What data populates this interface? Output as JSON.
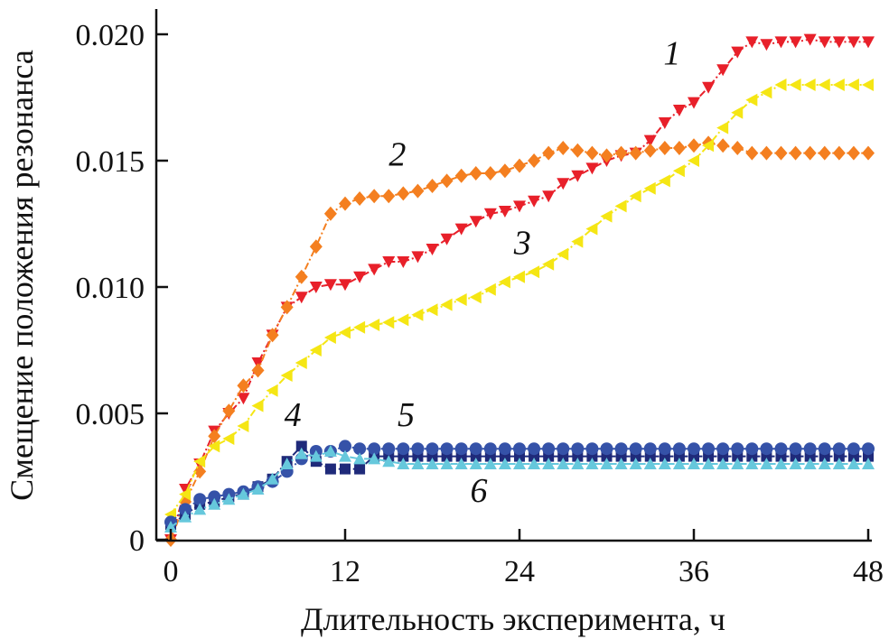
{
  "chart_data": {
    "type": "line",
    "title": "",
    "xlabel": "Длительность эксперимента, ч",
    "ylabel": "Смещение положения резонанса",
    "xlim": [
      0,
      48
    ],
    "ylim": [
      0,
      0.02
    ],
    "xticks": [
      0,
      12,
      24,
      36,
      48
    ],
    "xtick_labels": [
      "0",
      "12",
      "24",
      "36",
      "48"
    ],
    "yticks": [
      0,
      0.005,
      0.01,
      0.015,
      0.02
    ],
    "ytick_labels": [
      "0",
      "0.005",
      "0.010",
      "0.015",
      "0.020"
    ],
    "grid": false,
    "x": [
      0,
      1,
      2,
      3,
      4,
      5,
      6,
      7,
      8,
      9,
      10,
      11,
      12,
      13,
      14,
      15,
      16,
      17,
      18,
      19,
      20,
      21,
      22,
      23,
      24,
      25,
      26,
      27,
      28,
      29,
      30,
      31,
      32,
      33,
      34,
      35,
      36,
      37,
      38,
      39,
      40,
      41,
      42,
      43,
      44,
      45,
      46,
      47,
      48
    ],
    "series": [
      {
        "label": "1",
        "color": "#e8202a",
        "marker": "triangle-down",
        "values": [
          0,
          0.002,
          0.003,
          0.0043,
          0.005,
          0.0056,
          0.007,
          0.0081,
          0.0092,
          0.0096,
          0.01,
          0.0101,
          0.0101,
          0.0104,
          0.0107,
          0.011,
          0.011,
          0.0112,
          0.0115,
          0.0119,
          0.0123,
          0.0126,
          0.0129,
          0.013,
          0.0132,
          0.0134,
          0.0136,
          0.0141,
          0.0144,
          0.0147,
          0.015,
          0.0152,
          0.0153,
          0.0158,
          0.0165,
          0.017,
          0.0173,
          0.0179,
          0.0186,
          0.0193,
          0.0197,
          0.0196,
          0.0197,
          0.0197,
          0.0198,
          0.0197,
          0.0197,
          0.0197,
          0.0197
        ]
      },
      {
        "label": "2",
        "color": "#f47f20",
        "marker": "diamond",
        "values": [
          0,
          0.0015,
          0.0027,
          0.0041,
          0.0051,
          0.0061,
          0.0067,
          0.0081,
          0.0092,
          0.0104,
          0.0116,
          0.0129,
          0.0133,
          0.0135,
          0.0136,
          0.0136,
          0.0137,
          0.0138,
          0.014,
          0.0142,
          0.0144,
          0.0145,
          0.0145,
          0.0146,
          0.0148,
          0.015,
          0.0153,
          0.0155,
          0.0154,
          0.0153,
          0.0152,
          0.0153,
          0.0153,
          0.0154,
          0.0155,
          0.0155,
          0.0156,
          0.0157,
          0.0156,
          0.0155,
          0.0153,
          0.0153,
          0.0153,
          0.0153,
          0.0153,
          0.0153,
          0.0153,
          0.0153,
          0.0153
        ]
      },
      {
        "label": "3",
        "color": "#f5e614",
        "marker": "triangle-left",
        "values": [
          0.001,
          0.0018,
          0.0031,
          0.0037,
          0.004,
          0.0045,
          0.0053,
          0.0059,
          0.0065,
          0.007,
          0.0075,
          0.008,
          0.0082,
          0.0084,
          0.0085,
          0.0086,
          0.0087,
          0.0089,
          0.0091,
          0.0093,
          0.0095,
          0.0096,
          0.0099,
          0.0102,
          0.0104,
          0.0106,
          0.0109,
          0.0113,
          0.0118,
          0.0123,
          0.0128,
          0.0132,
          0.0136,
          0.0139,
          0.0142,
          0.0146,
          0.015,
          0.0156,
          0.0163,
          0.0169,
          0.0174,
          0.0177,
          0.018,
          0.018,
          0.018,
          0.018,
          0.018,
          0.018,
          0.018
        ]
      },
      {
        "label": "4",
        "color": "#1f2a7a",
        "marker": "square",
        "values": [
          0.0006,
          0.001,
          0.0014,
          0.0015,
          0.0017,
          0.0018,
          0.0021,
          0.0024,
          0.0031,
          0.0037,
          0.0031,
          0.0028,
          0.0028,
          0.0028,
          0.0033,
          0.0033,
          0.0033,
          0.0033,
          0.0033,
          0.0033,
          0.0033,
          0.0033,
          0.0033,
          0.0033,
          0.0033,
          0.0033,
          0.0033,
          0.0033,
          0.0033,
          0.0033,
          0.0033,
          0.0033,
          0.0033,
          0.0033,
          0.0033,
          0.0033,
          0.0033,
          0.0033,
          0.0033,
          0.0033,
          0.0033,
          0.0033,
          0.0033,
          0.0033,
          0.0033,
          0.0033,
          0.0033,
          0.0033,
          0.0033
        ]
      },
      {
        "label": "5",
        "color": "#3552a8",
        "marker": "circle",
        "values": [
          0.0007,
          0.0012,
          0.0016,
          0.0017,
          0.0018,
          0.0019,
          0.0021,
          0.0023,
          0.0027,
          0.0032,
          0.0035,
          0.0035,
          0.0037,
          0.0036,
          0.0036,
          0.0036,
          0.0036,
          0.0036,
          0.0036,
          0.0036,
          0.0036,
          0.0036,
          0.0036,
          0.0036,
          0.0036,
          0.0036,
          0.0036,
          0.0036,
          0.0036,
          0.0036,
          0.0036,
          0.0036,
          0.0036,
          0.0036,
          0.0036,
          0.0036,
          0.0036,
          0.0036,
          0.0036,
          0.0036,
          0.0036,
          0.0036,
          0.0036,
          0.0036,
          0.0036,
          0.0036,
          0.0036,
          0.0036,
          0.0036
        ]
      },
      {
        "label": "6",
        "color": "#66c8dc",
        "marker": "triangle-up",
        "values": [
          0.0005,
          0.0009,
          0.0012,
          0.0014,
          0.0016,
          0.0018,
          0.002,
          0.0024,
          0.003,
          0.0034,
          0.0033,
          0.0035,
          0.0033,
          0.0032,
          0.0032,
          0.0031,
          0.003,
          0.003,
          0.003,
          0.003,
          0.003,
          0.003,
          0.003,
          0.003,
          0.003,
          0.003,
          0.003,
          0.003,
          0.003,
          0.003,
          0.003,
          0.003,
          0.003,
          0.003,
          0.003,
          0.003,
          0.003,
          0.003,
          0.003,
          0.003,
          0.003,
          0.003,
          0.003,
          0.003,
          0.003,
          0.003,
          0.003,
          0.003,
          0.003
        ]
      }
    ]
  }
}
